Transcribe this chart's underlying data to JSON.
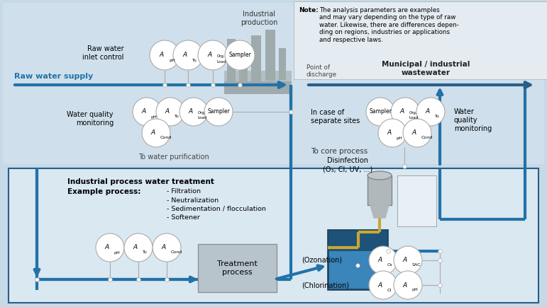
{
  "bg_color": "#c5d9e6",
  "top_area_color": "#cfe0ec",
  "bot_area_color": "#dae8f2",
  "note_box_color": "#e4ecf2",
  "note_title": "Note:",
  "note_text": "The analysis parameters are examples\nand may vary depending on the type of raw\nwater. Likewise, there are differences depen-\nding on regions, industries or applications\nand respective laws.",
  "arrow_blue": "#2272a8",
  "arrow_dark": "#2a5e8a",
  "circle_fill": "#ffffff",
  "circle_edge": "#aaaaaa",
  "box_gray_fill": "#b8c4cc",
  "box_gray_edge": "#909090",
  "tank_dark": "#1e5278",
  "tank_mid": "#2e72a0",
  "tank_water": "#3a85ba",
  "pipe_yellow": "#c8a832",
  "factory_gray": "#909898",
  "line_gray": "#aaaaaa",
  "industrial_prod": "Industrial\nproduction",
  "raw_water_label": "Raw water\ninlet control",
  "raw_water_supply": "Raw water supply",
  "water_quality_label1": "Water quality\nmonitoring",
  "water_quality_label2": "Water\nquality\nmonitoring",
  "point_discharge": "Point of\ndischarge",
  "municipal_label": "Municipal / industrial\nwastewater",
  "in_case_label": "In case of\nseparate sites",
  "to_water_purif": "To water purification",
  "to_core_process": "To core process",
  "treatment_process": "Treatment\nprocess",
  "process_title1": "Industrial process water treatment",
  "process_title2": "Example process:",
  "process_items": [
    "- Filtration",
    "- Neutralization",
    "- Sedimentation / flocculation",
    "- Softener"
  ],
  "disinfection_label": "Disinfection\n(O₃, Cl, UV, ...)",
  "ozonation_label": "(Ozonation)",
  "chlorination_label": "(Chlorination)"
}
